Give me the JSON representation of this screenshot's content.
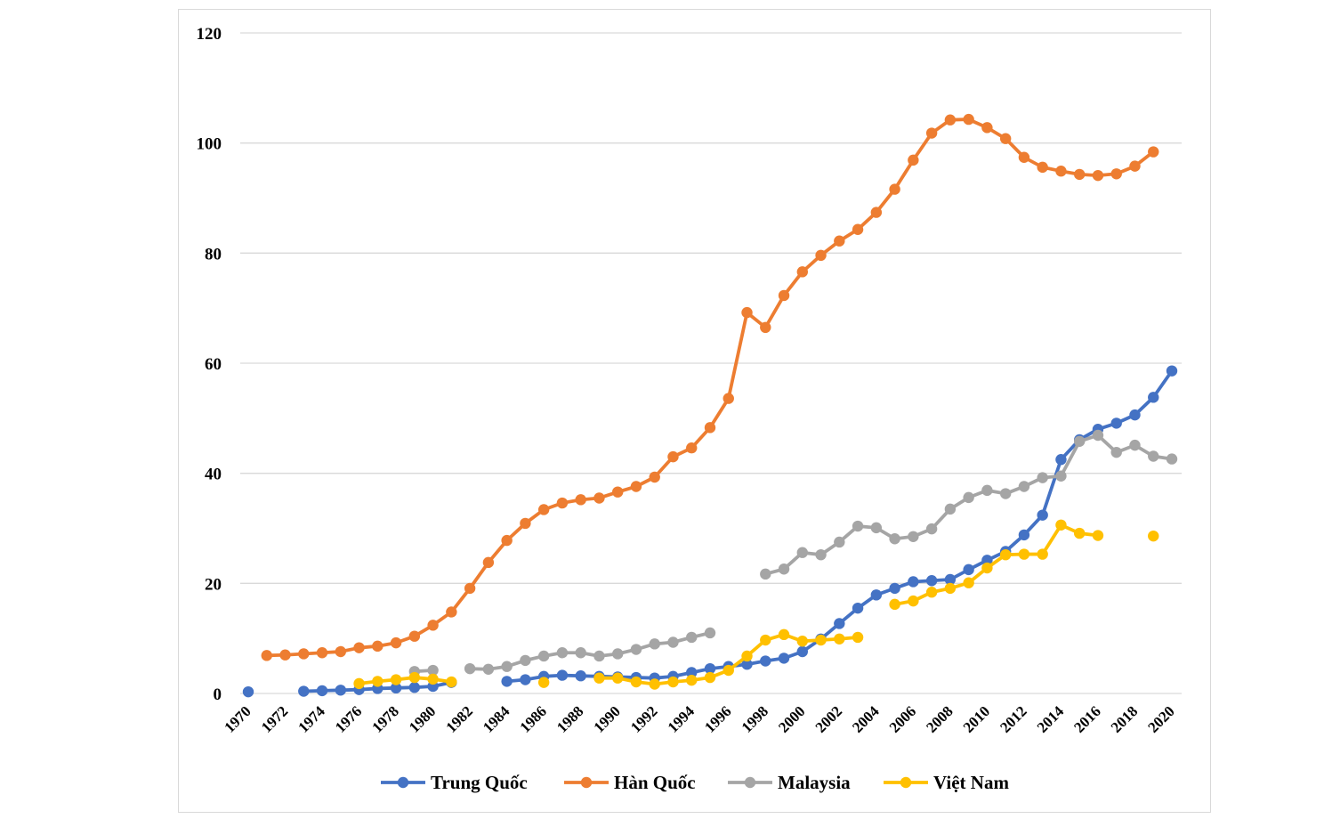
{
  "chart_data": {
    "type": "line",
    "title": "",
    "xlabel": "",
    "ylabel": "",
    "ylim": [
      0,
      120
    ],
    "yticks": [
      0,
      20,
      40,
      60,
      80,
      100,
      120
    ],
    "xlim": [
      1970,
      2020
    ],
    "xtick_labels": [
      "1970",
      "1972",
      "1974",
      "1976",
      "1978",
      "1980",
      "1982",
      "1984",
      "1986",
      "1988",
      "1990",
      "1992",
      "1994",
      "1996",
      "1998",
      "2000",
      "2002",
      "2004",
      "2006",
      "2008",
      "2010",
      "2012",
      "2014",
      "2016",
      "2018",
      "2020"
    ],
    "grid": "horizontal",
    "legend_position": "bottom",
    "x": [
      1970,
      1971,
      1972,
      1973,
      1974,
      1975,
      1976,
      1977,
      1978,
      1979,
      1980,
      1981,
      1982,
      1983,
      1984,
      1985,
      1986,
      1987,
      1988,
      1989,
      1990,
      1991,
      1992,
      1993,
      1994,
      1995,
      1996,
      1997,
      1998,
      1999,
      2000,
      2001,
      2002,
      2003,
      2004,
      2005,
      2006,
      2007,
      2008,
      2009,
      2010,
      2011,
      2012,
      2013,
      2014,
      2015,
      2016,
      2017,
      2018,
      2019,
      2020
    ],
    "series": [
      {
        "name": "Trung Quốc",
        "color": "#4472c4",
        "values": [
          0.3,
          null,
          null,
          0.4,
          0.5,
          0.6,
          0.7,
          0.9,
          1.0,
          1.1,
          1.3,
          2.0,
          null,
          null,
          2.2,
          2.5,
          3.1,
          3.3,
          3.2,
          3.1,
          3.0,
          2.9,
          2.8,
          3.1,
          3.8,
          4.5,
          4.9,
          5.3,
          5.9,
          6.4,
          7.6,
          9.9,
          12.7,
          15.5,
          17.9,
          19.1,
          20.3,
          20.5,
          20.7,
          22.5,
          24.2,
          25.8,
          28.8,
          32.4,
          42.5,
          46.1,
          48.0,
          49.1,
          50.6,
          53.8,
          58.6
        ]
      },
      {
        "name": "Hàn Quốc",
        "color": "#ed7d31",
        "values": [
          null,
          6.9,
          7.0,
          7.2,
          7.4,
          7.6,
          8.3,
          8.6,
          9.2,
          10.4,
          12.4,
          14.8,
          19.1,
          23.8,
          27.8,
          30.9,
          33.4,
          34.6,
          35.2,
          35.5,
          36.6,
          37.6,
          39.3,
          43.0,
          44.6,
          48.3,
          53.6,
          69.2,
          66.5,
          72.3,
          76.6,
          79.6,
          82.2,
          84.3,
          87.4,
          91.6,
          96.9,
          101.8,
          104.2,
          104.3,
          102.8,
          100.8,
          97.4,
          95.6,
          94.9,
          94.3,
          94.1,
          94.4,
          95.8,
          98.4,
          null
        ]
      },
      {
        "name": "Malaysia",
        "color": "#a5a5a5",
        "values": [
          null,
          null,
          null,
          null,
          null,
          null,
          null,
          null,
          null,
          4.0,
          4.2,
          null,
          4.5,
          4.4,
          4.9,
          6.0,
          6.8,
          7.4,
          7.4,
          6.8,
          7.2,
          8.0,
          9.0,
          9.3,
          10.2,
          11.0,
          null,
          null,
          21.7,
          22.6,
          25.6,
          25.2,
          27.5,
          30.4,
          30.1,
          28.1,
          28.5,
          29.9,
          33.5,
          35.6,
          36.9,
          36.3,
          37.6,
          39.2,
          39.5,
          45.8,
          46.9,
          43.8,
          45.1,
          43.1,
          42.6
        ]
      },
      {
        "name": "Việt Nam",
        "color": "#ffc000",
        "values": [
          null,
          null,
          null,
          null,
          null,
          null,
          1.8,
          2.2,
          2.5,
          2.9,
          2.6,
          2.1,
          null,
          null,
          null,
          null,
          2.0,
          null,
          null,
          2.8,
          2.8,
          2.1,
          1.7,
          2.1,
          2.4,
          2.9,
          4.2,
          6.8,
          9.7,
          10.7,
          9.5,
          9.7,
          9.9,
          10.2,
          null,
          16.2,
          16.8,
          18.4,
          19.1,
          20.1,
          22.8,
          25.2,
          25.3,
          25.3,
          30.6,
          29.1,
          28.7,
          null,
          null,
          28.6,
          null
        ]
      }
    ]
  }
}
